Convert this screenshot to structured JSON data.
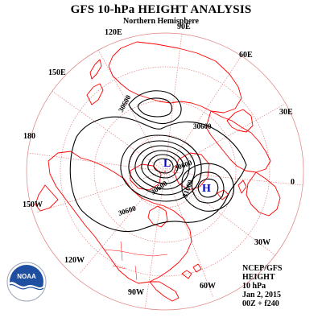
{
  "header": {
    "title": "GFS 10-hPa HEIGHT ANALYSIS",
    "subtitle": "Northern Hemisphere"
  },
  "longitudes": {
    "lon_90e": "90E",
    "lon_120e": "120E",
    "lon_60e": "60E",
    "lon_150e": "150E",
    "lon_30e": "30E",
    "lon_180": "180",
    "lon_0": "0",
    "lon_150w": "150W",
    "lon_30w": "30W",
    "lon_120w": "120W",
    "lon_60w": "60W",
    "lon_90w": "90W"
  },
  "contour_labels": {
    "c1": "30600",
    "c2": "30600",
    "c3": "30600",
    "c4": "31000",
    "c5": "30600",
    "c6": "30600"
  },
  "pressure_centers": {
    "low": "L",
    "high": "H"
  },
  "info": {
    "line1": "NCEP/GFS",
    "line2": "HEIGHT",
    "line3": "10 hPa",
    "line4": "Jan 2, 2015",
    "line5": "00Z + f240"
  },
  "logo": {
    "text": "NOAA",
    "icon": "noaa-logo-icon"
  },
  "colors": {
    "grid": "#e08080",
    "coast": "#ff0000",
    "contour": "#000000",
    "low": "#0000cc",
    "high": "#0000cc",
    "logo_blue": "#1f4fa0"
  }
}
